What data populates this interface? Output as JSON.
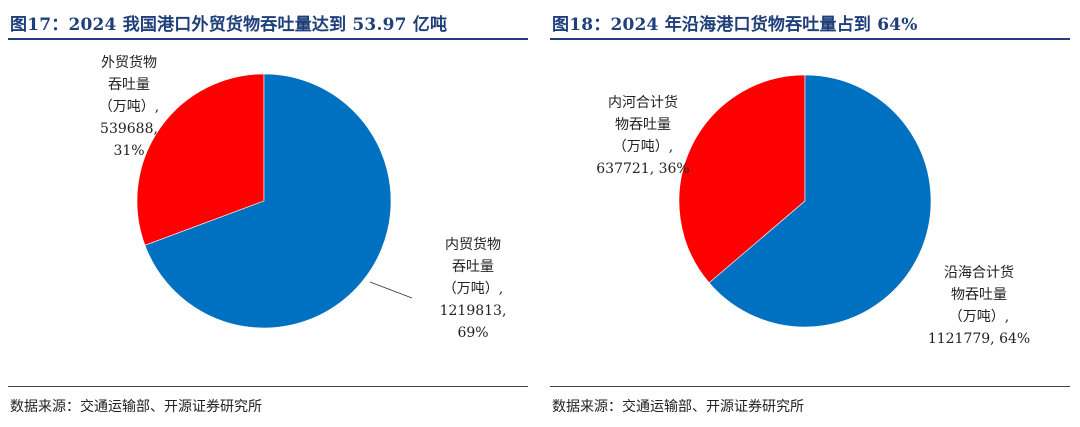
{
  "chart_data": [
    {
      "type": "pie",
      "title": "图17：2024 我国港口外贸货物吞吐量达到 53.97 亿吨",
      "source": "数据来源：交通运输部、开源证券研究所",
      "slices": [
        {
          "label_lines": [
            "外贸货物",
            "吞吐量",
            "（万吨）,",
            "539688,",
            "31%"
          ],
          "value": 539688,
          "percent": 31,
          "color": "#ff0000"
        },
        {
          "label_lines": [
            "内贸货物",
            "吞吐量",
            "（万吨）,",
            "1219813,",
            "69%"
          ],
          "value": 1219813,
          "percent": 69,
          "color": "#0070c0"
        }
      ]
    },
    {
      "type": "pie",
      "title": "图18：2024 年沿海港口货物吞吐量占到 64%",
      "source": "数据来源：交通运输部、开源证券研究所",
      "slices": [
        {
          "label_lines": [
            "内河合计货",
            "物吞吐量",
            "（万吨）,",
            "637721, 36%"
          ],
          "value": 637721,
          "percent": 36,
          "color": "#ff0000"
        },
        {
          "label_lines": [
            "沿海合计货",
            "物吞吐量",
            "（万吨）,",
            "1121779, 64%"
          ],
          "value": 1121779,
          "percent": 64,
          "color": "#0070c0"
        }
      ]
    }
  ]
}
